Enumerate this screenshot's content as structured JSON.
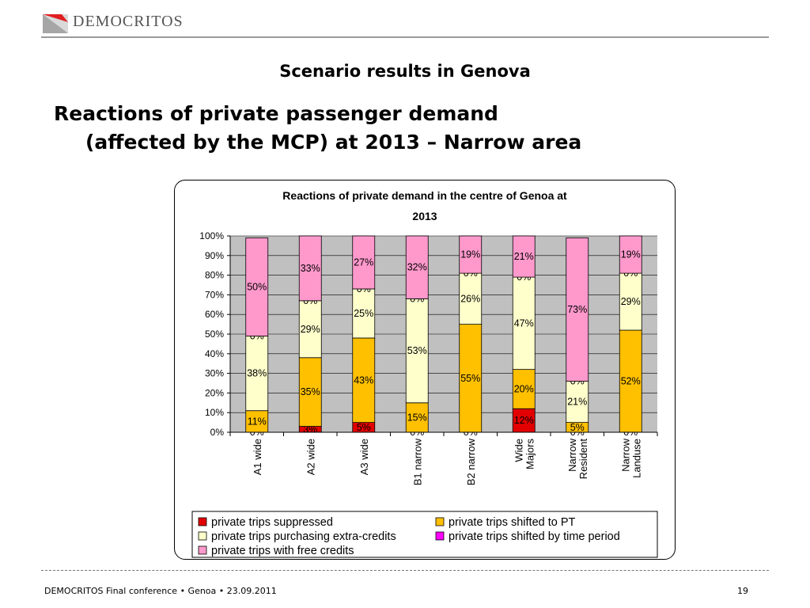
{
  "brand": {
    "name": "DEMOCRITOS"
  },
  "slide": {
    "subtitle": "Scenario results in Genova",
    "headline_line1": "Reactions of private passenger demand",
    "headline_line2": "(affected by the MCP) at 2013 – Narrow area"
  },
  "footer": {
    "left": "DEMOCRITOS Final conference • Genoa • 23.09.2011",
    "page": "19"
  },
  "chart_data": {
    "type": "bar",
    "stacked": "percent",
    "title_line1": "Reactions of private demand in the centre of Genoa at",
    "title_line2": "2013",
    "categories": [
      [
        "A1 wide"
      ],
      [
        "A2 wide"
      ],
      [
        "A3 wide"
      ],
      [
        "B1 narrow"
      ],
      [
        "B2 narrow"
      ],
      [
        "Wide",
        "Majors"
      ],
      [
        "Narrow",
        "Resident"
      ],
      [
        "Narrow",
        "Landuse"
      ]
    ],
    "yticks": [
      "0%",
      "10%",
      "20%",
      "30%",
      "40%",
      "50%",
      "60%",
      "70%",
      "80%",
      "90%",
      "100%"
    ],
    "ylim": [
      0,
      100
    ],
    "grid": true,
    "legend_position": "bottom",
    "series": [
      {
        "name": "private trips suppressed",
        "color": "#e30000",
        "values": [
          0,
          3,
          5,
          0,
          0,
          12,
          0,
          0
        ],
        "labels": [
          "0%",
          "3%",
          "5%",
          "0%",
          "0%",
          "12%",
          "0%",
          "0%"
        ]
      },
      {
        "name": "private trips shifted to PT",
        "color": "#ffc000",
        "values": [
          11,
          35,
          43,
          15,
          55,
          20,
          5,
          52
        ],
        "labels": [
          "11%",
          "35%",
          "43%",
          "15%",
          "55%",
          "20%",
          "5%",
          "52%"
        ]
      },
      {
        "name": "private trips purchasing extra-credits",
        "color": "#ffffcc",
        "values": [
          38,
          29,
          25,
          53,
          26,
          47,
          21,
          29
        ],
        "labels": [
          "38%",
          "29%",
          "25%",
          "53%",
          "26%",
          "47%",
          "21%",
          "29%"
        ]
      },
      {
        "name": "private trips shifted by time period",
        "color": "#ff00ff",
        "values": [
          0,
          0,
          0,
          0,
          0,
          0,
          0,
          0
        ],
        "labels": [
          "0%",
          "0%",
          "0%",
          "0%",
          "0%",
          "0%",
          "0%",
          "0%"
        ]
      },
      {
        "name": "private trips with free credits",
        "color": "#ff99cc",
        "values": [
          50,
          33,
          27,
          32,
          19,
          21,
          73,
          19
        ],
        "labels": [
          "50%",
          "33%",
          "27%",
          "32%",
          "19%",
          "21%",
          "73%",
          "19%"
        ]
      }
    ]
  }
}
